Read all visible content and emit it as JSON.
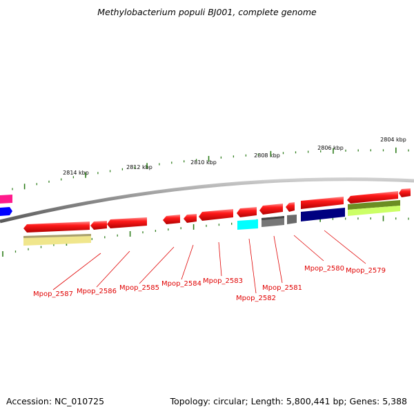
{
  "title": "Methylobacterium populi BJ001, complete genome",
  "accession": "Accession: NC_010725",
  "summary": "Topology: circular; Length: 5,800,441 bp; Genes: 5,388",
  "colors": {
    "gene_red": "#ff1a1a",
    "cyan": "#00ffff",
    "gray": "#777777",
    "navy": "#000080",
    "olive": "#6b8e23",
    "lime": "#ccff66",
    "pale_yellow": "#f0e68c",
    "magenta": "#ff1a8c",
    "blue": "#0000ff",
    "tick": "#2e7d1b",
    "label": "#e00000",
    "backbone": "#808080"
  },
  "scale_labels": [
    "2814 kbp",
    "2812 kbp",
    "2810 kbp",
    "2808 kbp",
    "2806 kbp",
    "2804 kbp"
  ],
  "gene_labels": [
    "Mpop_2587",
    "Mpop_2586",
    "Mpop_2585",
    "Mpop_2584",
    "Mpop_2583",
    "Mpop_2582",
    "Mpop_2581",
    "Mpop_2580",
    "Mpop_2579"
  ]
}
